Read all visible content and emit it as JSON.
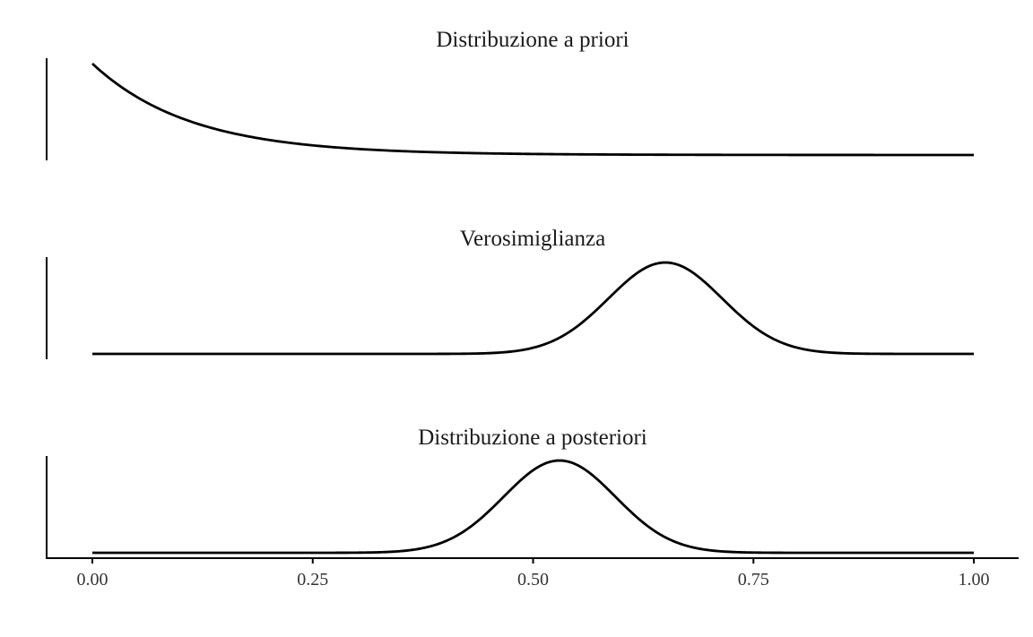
{
  "chart_data": [
    {
      "type": "line",
      "title": "Distribuzione a priori",
      "shape": "exponential decay",
      "x": [
        0.0,
        0.05,
        0.1,
        0.15,
        0.2,
        0.25,
        0.3,
        0.4,
        0.5,
        0.6,
        0.7,
        0.8,
        0.9,
        1.0
      ],
      "y": [
        1.0,
        0.64,
        0.41,
        0.26,
        0.17,
        0.11,
        0.07,
        0.03,
        0.01,
        0.005,
        0.002,
        0.001,
        0.0,
        0.0
      ],
      "xlim": [
        0,
        1
      ],
      "y_axis_labels_shown": false
    },
    {
      "type": "line",
      "title": "Verosimiglianza",
      "shape": "bell curve, peak near x = 0.65",
      "x": [
        0.0,
        0.3,
        0.4,
        0.45,
        0.5,
        0.55,
        0.6,
        0.65,
        0.7,
        0.75,
        0.8,
        0.85,
        0.9,
        1.0
      ],
      "y": [
        0.0,
        0.0,
        0.02,
        0.06,
        0.17,
        0.38,
        0.68,
        1.0,
        0.68,
        0.38,
        0.17,
        0.06,
        0.02,
        0.0
      ],
      "xlim": [
        0,
        1
      ],
      "y_axis_labels_shown": false
    },
    {
      "type": "line",
      "title": "Distribuzione a posteriori",
      "shape": "bell curve, peak near x = 0.53",
      "x": [
        0.0,
        0.3,
        0.35,
        0.4,
        0.45,
        0.5,
        0.53,
        0.55,
        0.6,
        0.65,
        0.7,
        0.75,
        0.8,
        1.0
      ],
      "y": [
        0.0,
        0.01,
        0.04,
        0.15,
        0.42,
        0.85,
        1.0,
        0.97,
        0.65,
        0.29,
        0.09,
        0.02,
        0.0,
        0.0
      ],
      "xlim": [
        0,
        1
      ],
      "xticks": [
        "0.00",
        "0.25",
        "0.50",
        "0.75",
        "1.00"
      ],
      "y_axis_labels_shown": false
    }
  ]
}
